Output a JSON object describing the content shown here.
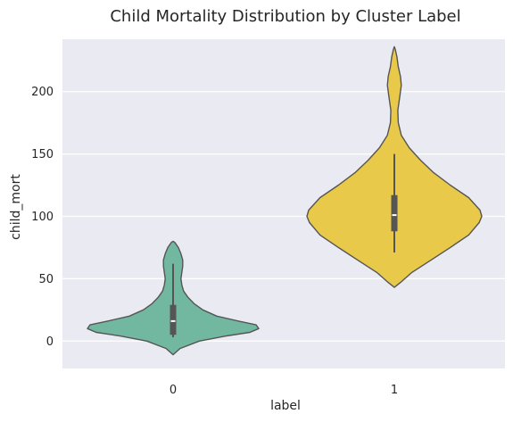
{
  "chart_data": {
    "type": "violin",
    "title": "Child Mortality Distribution by Cluster Label",
    "xlabel": "label",
    "ylabel": "child_mort",
    "categories": [
      "0",
      "1"
    ],
    "ylim": [
      -22,
      242
    ],
    "yticks": [
      0,
      50,
      100,
      150,
      200
    ],
    "grid": true,
    "background": "#eaeaf2",
    "gridColor": "#ffffff",
    "lineColor": "#555555",
    "violins": [
      {
        "category": "0",
        "color": "#72b8a1",
        "density": [
          [
            -11,
            0
          ],
          [
            -6,
            0.08
          ],
          [
            0,
            0.3
          ],
          [
            4,
            0.6
          ],
          [
            7,
            0.88
          ],
          [
            10,
            0.98
          ],
          [
            13,
            0.95
          ],
          [
            16,
            0.75
          ],
          [
            20,
            0.5
          ],
          [
            25,
            0.34
          ],
          [
            30,
            0.24
          ],
          [
            35,
            0.17
          ],
          [
            40,
            0.12
          ],
          [
            45,
            0.1
          ],
          [
            50,
            0.09
          ],
          [
            55,
            0.1
          ],
          [
            60,
            0.11
          ],
          [
            65,
            0.11
          ],
          [
            70,
            0.09
          ],
          [
            75,
            0.06
          ],
          [
            79,
            0.02
          ],
          [
            80,
            0
          ]
        ],
        "min": 3,
        "q1": 5,
        "median": 16,
        "q3": 29,
        "max": 62
      },
      {
        "category": "1",
        "color": "#e8c94a",
        "density": [
          [
            43,
            0
          ],
          [
            47,
            0.07
          ],
          [
            55,
            0.2
          ],
          [
            65,
            0.42
          ],
          [
            75,
            0.64
          ],
          [
            85,
            0.85
          ],
          [
            95,
            0.97
          ],
          [
            100,
            1.0
          ],
          [
            105,
            0.98
          ],
          [
            115,
            0.85
          ],
          [
            125,
            0.64
          ],
          [
            135,
            0.45
          ],
          [
            145,
            0.3
          ],
          [
            155,
            0.17
          ],
          [
            165,
            0.08
          ],
          [
            175,
            0.045
          ],
          [
            185,
            0.04
          ],
          [
            195,
            0.06
          ],
          [
            205,
            0.08
          ],
          [
            212,
            0.07
          ],
          [
            220,
            0.045
          ],
          [
            228,
            0.03
          ],
          [
            234,
            0.01
          ],
          [
            236,
            0
          ]
        ],
        "min": 71,
        "q1": 88,
        "median": 101,
        "q3": 117,
        "max": 150
      }
    ]
  }
}
